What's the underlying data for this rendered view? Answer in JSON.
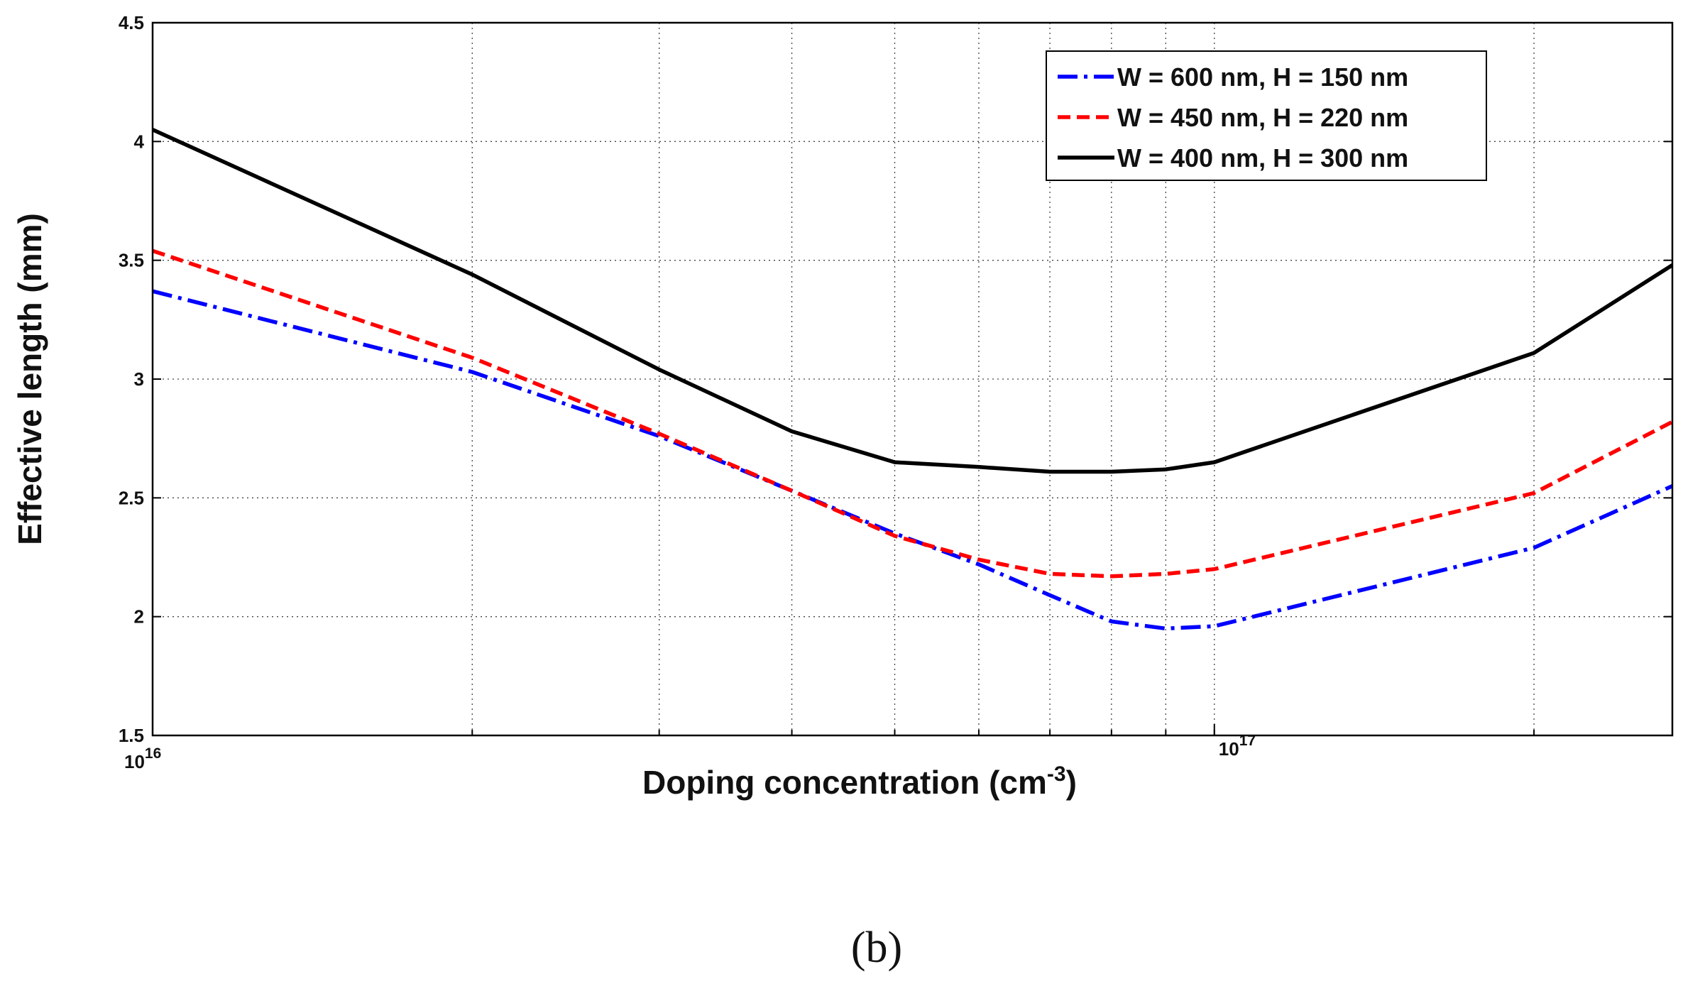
{
  "chart_data": {
    "type": "line",
    "xscale": "log",
    "xlim": [
      1e+16,
      2.7e+17
    ],
    "ylim": [
      1.5,
      4.5
    ],
    "grid": true,
    "xlabel": "Doping concentration (cm",
    "xlabel_sup": "-3",
    "xlabel_tail": ")",
    "ylabel": "Effective length (mm)",
    "yticks": [
      "1.5",
      "2",
      "2.5",
      "3",
      "3.5",
      "4",
      "4.5"
    ],
    "xticks_major": [
      {
        "base": "10",
        "exp": "16",
        "value": 1e+16
      },
      {
        "base": "10",
        "exp": "17",
        "value": 1e+17
      }
    ],
    "xgrid_values": [
      2e+16,
      3e+16,
      4e+16,
      5e+16,
      6e+16,
      7e+16,
      8e+16,
      9e+16,
      1e+17,
      2e+17
    ],
    "legend_position": "top-right",
    "panel_label": "(b)",
    "series": [
      {
        "name": "W = 600 nm, H = 150 nm",
        "color": "#0000ff",
        "dash": "28,9,5,9",
        "x": [
          1e+16,
          2e+16,
          3e+16,
          4e+16,
          5e+16,
          6e+16,
          7e+16,
          8e+16,
          9e+16,
          1e+17,
          2e+17,
          2.7e+17
        ],
        "y": [
          3.37,
          3.03,
          2.76,
          2.53,
          2.35,
          2.22,
          2.09,
          1.98,
          1.95,
          1.96,
          2.29,
          2.55
        ]
      },
      {
        "name": "W = 450 nm, H = 220 nm",
        "color": "#ff0000",
        "dash": "18,9",
        "x": [
          1e+16,
          2e+16,
          3e+16,
          4e+16,
          5e+16,
          6e+16,
          7e+16,
          8e+16,
          9e+16,
          1e+17,
          2e+17,
          2.7e+17
        ],
        "y": [
          3.54,
          3.09,
          2.77,
          2.53,
          2.34,
          2.24,
          2.18,
          2.17,
          2.18,
          2.2,
          2.52,
          2.82
        ]
      },
      {
        "name": "W = 400 nm, H = 300 nm",
        "color": "#000000",
        "dash": "",
        "x": [
          1e+16,
          2e+16,
          3e+16,
          4e+16,
          5e+16,
          6e+16,
          7e+16,
          8e+16,
          9e+16,
          1e+17,
          2e+17,
          2.7e+17
        ],
        "y": [
          4.05,
          3.44,
          3.04,
          2.78,
          2.65,
          2.63,
          2.61,
          2.61,
          2.62,
          2.65,
          3.11,
          3.48
        ]
      }
    ]
  }
}
